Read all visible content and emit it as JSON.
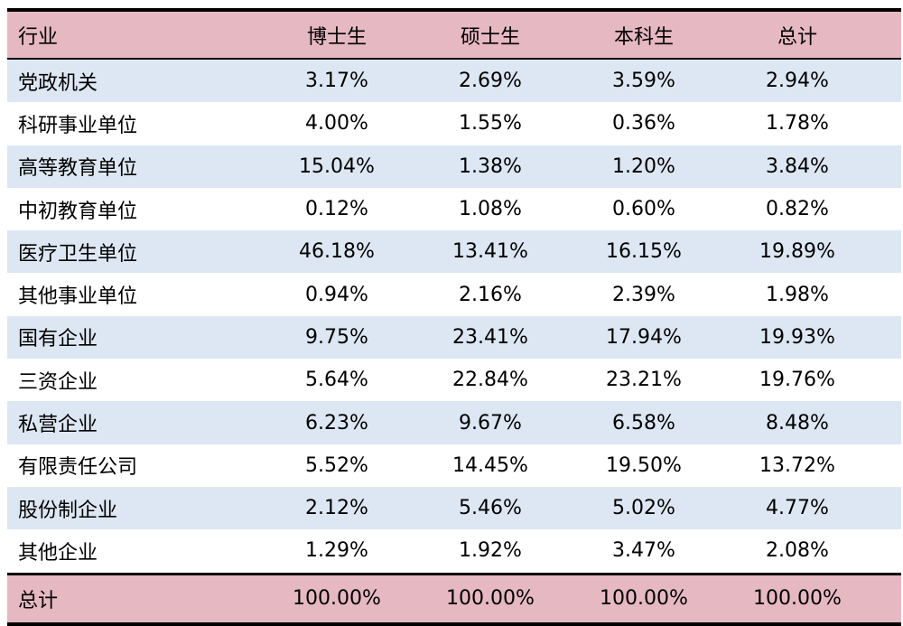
{
  "header": [
    "行业",
    "博士生",
    "硕士生",
    "本科生",
    "总计"
  ],
  "rows": [
    [
      "党政机关",
      "3.17%",
      "2.69%",
      "3.59%",
      "2.94%"
    ],
    [
      "科研事业单位",
      "4.00%",
      "1.55%",
      "0.36%",
      "1.78%"
    ],
    [
      "高等教育单位",
      "15.04%",
      "1.38%",
      "1.20%",
      "3.84%"
    ],
    [
      "中初教育单位",
      "0.12%",
      "1.08%",
      "0.60%",
      "0.82%"
    ],
    [
      "医疗卫生单位",
      "46.18%",
      "13.41%",
      "16.15%",
      "19.89%"
    ],
    [
      "其他事业单位",
      "0.94%",
      "2.16%",
      "2.39%",
      "1.98%"
    ],
    [
      "国有企业",
      "9.75%",
      "23.41%",
      "17.94%",
      "19.93%"
    ],
    [
      "三资企业",
      "5.64%",
      "22.84%",
      "23.21%",
      "19.76%"
    ],
    [
      "私营企业",
      "6.23%",
      "9.67%",
      "6.58%",
      "8.48%"
    ],
    [
      "有限责任公司",
      "5.52%",
      "14.45%",
      "19.50%",
      "13.72%"
    ],
    [
      "股份制企业",
      "2.12%",
      "5.46%",
      "5.02%",
      "4.77%"
    ],
    [
      "其他企业",
      "1.29%",
      "1.92%",
      "3.47%",
      "2.08%"
    ]
  ],
  "total": [
    "总计",
    "100.00%",
    "100.00%",
    "100.00%",
    "100.00%"
  ],
  "colors": {
    "header_bg": "#e6b8c2",
    "row_shade": "#dde7f3",
    "row_plain": "#ffffff",
    "border": "#000000"
  }
}
